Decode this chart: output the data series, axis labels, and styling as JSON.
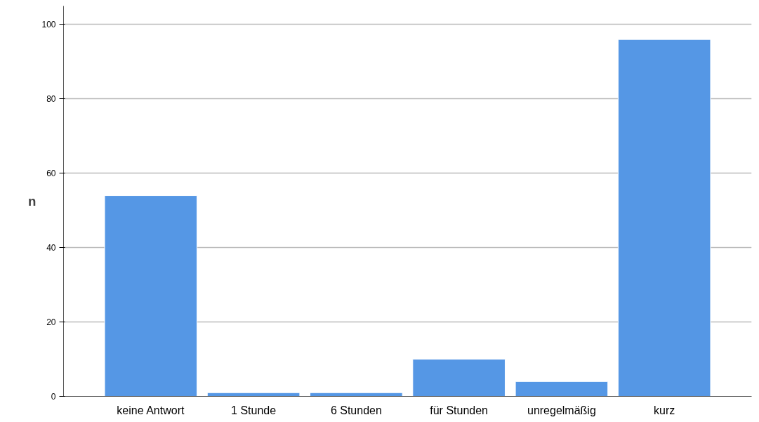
{
  "chart_data": {
    "type": "bar",
    "ylabel": "n",
    "categories": [
      "keine Antwort",
      "1 Stunde",
      "6 Stunden",
      "für Stunden",
      "unregelmäßig",
      "kurz"
    ],
    "values": [
      54,
      1,
      1,
      10,
      4,
      96
    ],
    "color": "#5597e5",
    "ylim": [
      0,
      105
    ],
    "yticks": [
      0,
      20,
      40,
      60,
      80,
      100
    ],
    "grid": "y"
  }
}
